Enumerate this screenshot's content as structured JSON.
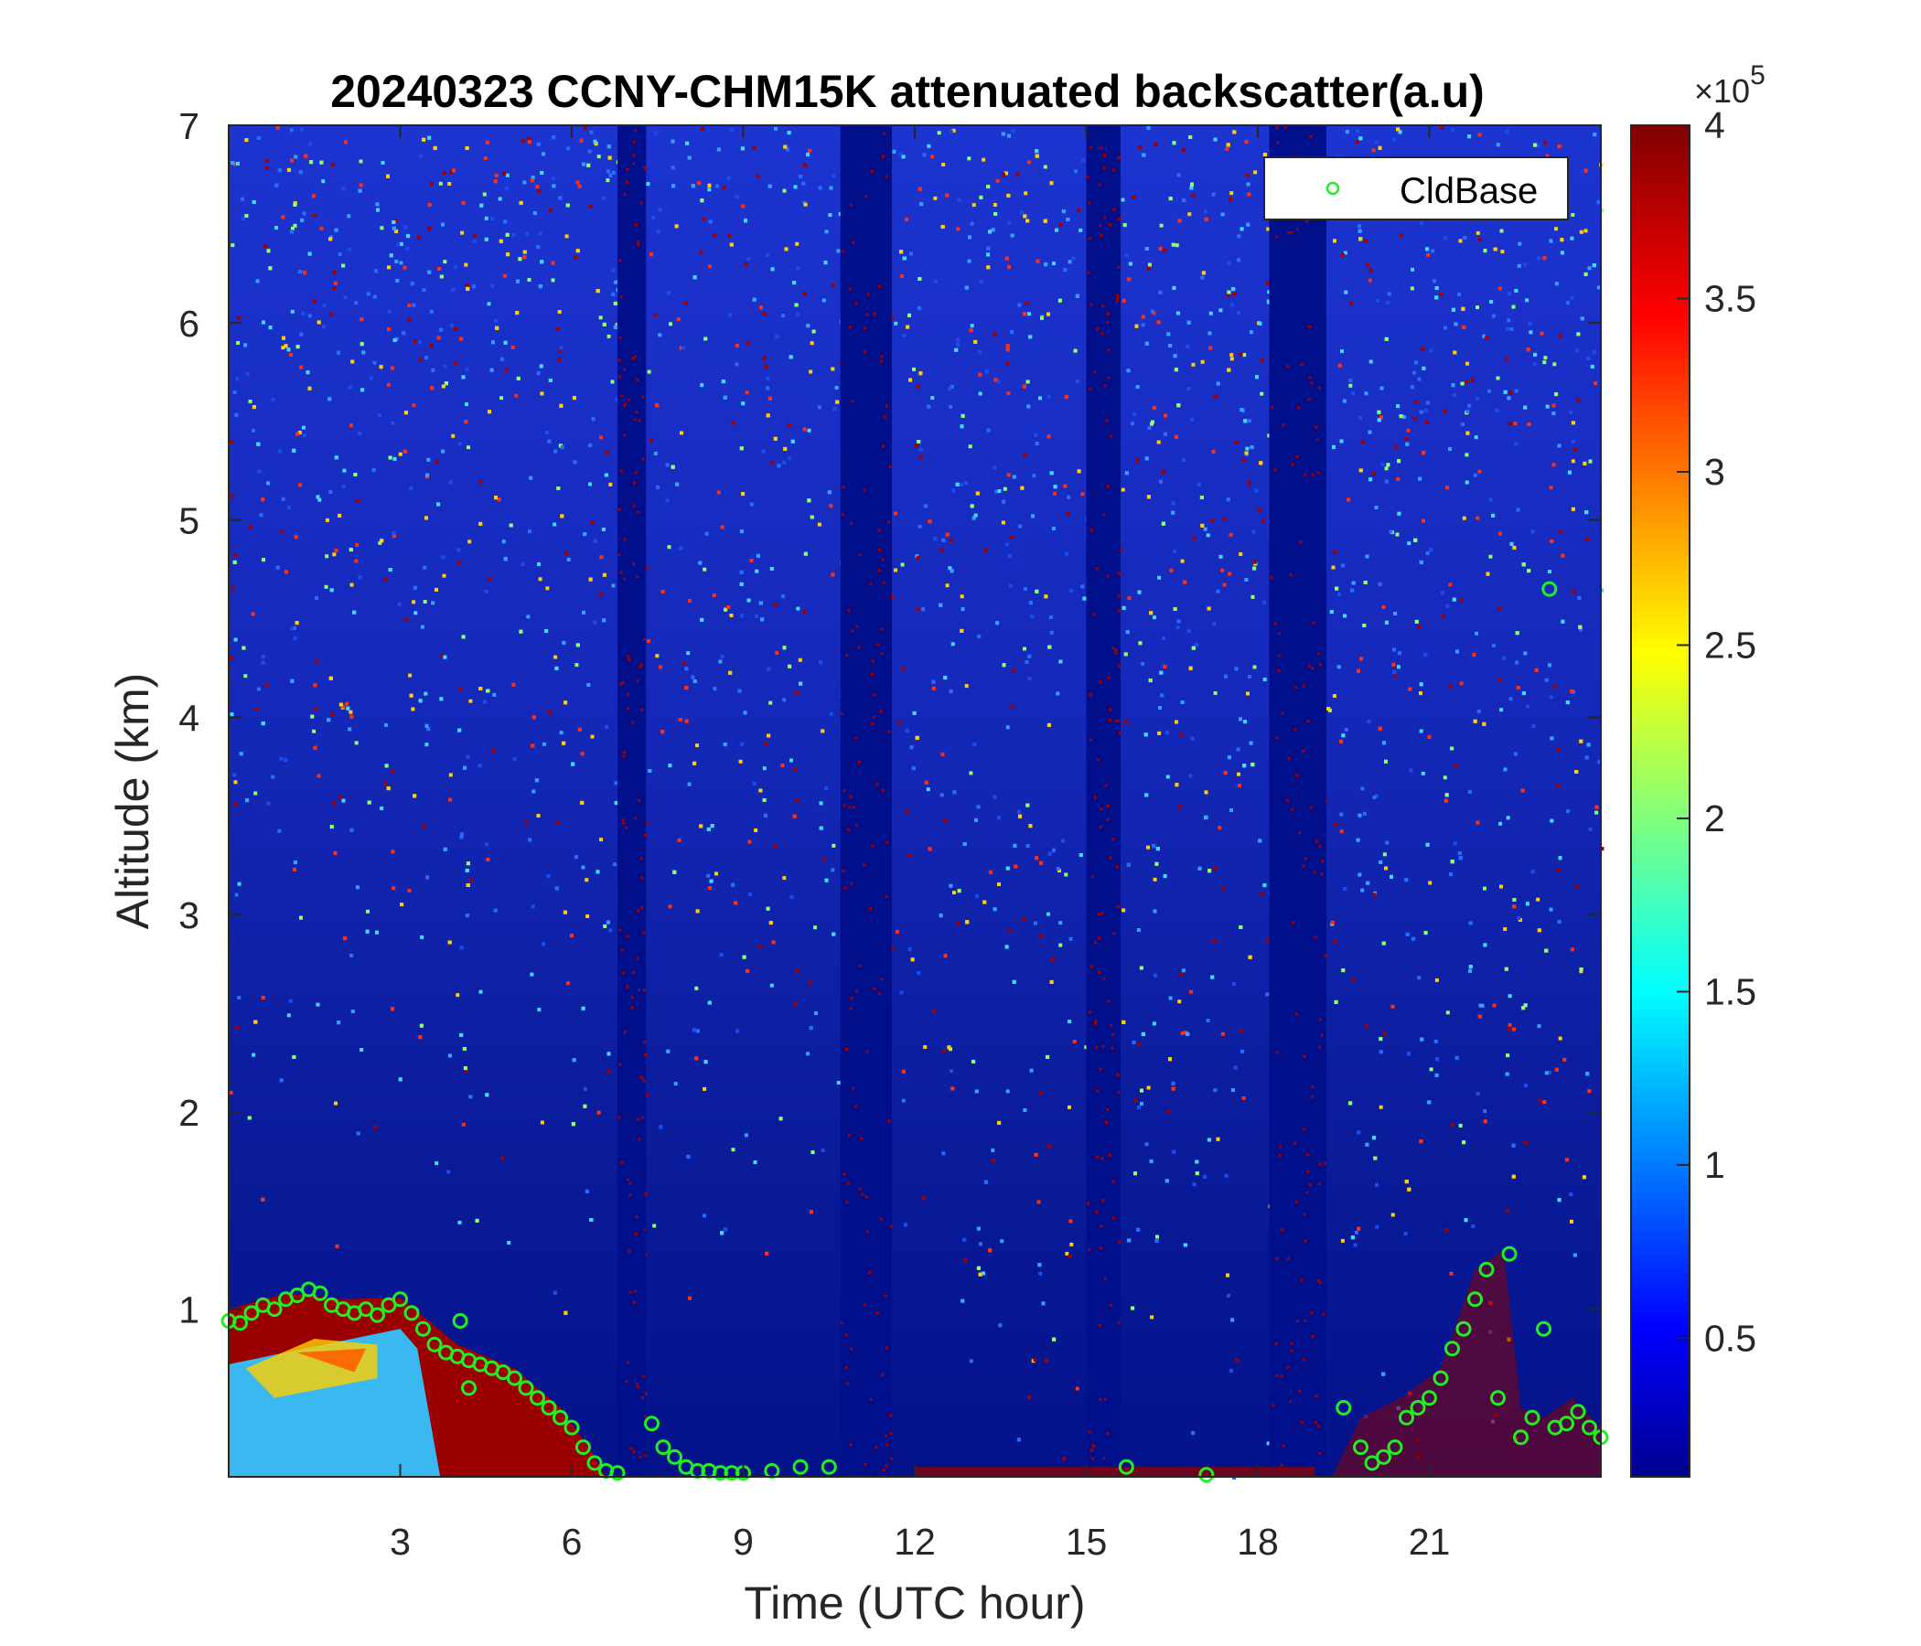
{
  "chart_data": {
    "type": "heatmap",
    "title": "20240323 CCNY-CHM15K attenuated backscatter(a.u)",
    "xlabel": "Time (UTC hour)",
    "ylabel": "Altitude (km)",
    "xlim": [
      0,
      24
    ],
    "ylim": [
      0.15,
      7
    ],
    "x_ticks": [
      3,
      6,
      9,
      12,
      15,
      18,
      21
    ],
    "y_ticks": [
      1,
      2,
      3,
      4,
      5,
      6,
      7
    ],
    "colormap": "jet",
    "grid": false,
    "colorbar": {
      "range": [
        0.1,
        4
      ],
      "ticks": [
        0.5,
        1,
        1.5,
        2,
        2.5,
        3,
        3.5,
        4
      ],
      "exponent_label": "×10",
      "exponent_power": "5"
    },
    "data_gaps": [
      [
        6.8,
        7.3
      ],
      [
        10.7,
        11.6
      ],
      [
        15.0,
        15.6
      ],
      [
        18.2,
        19.2
      ]
    ],
    "legend": {
      "placement": "top-right",
      "entries": [
        {
          "name": "CldBase",
          "marker": "circle",
          "color": "#22ee22"
        }
      ]
    },
    "series": [
      {
        "name": "CldBase",
        "marker_color": "#22ee22",
        "x": [
          0.0,
          0.2,
          0.4,
          0.6,
          0.8,
          1.0,
          1.2,
          1.4,
          1.6,
          1.8,
          2.0,
          2.2,
          2.4,
          2.6,
          2.8,
          3.0,
          3.2,
          3.4,
          3.6,
          3.8,
          4.0,
          4.2,
          4.4,
          4.6,
          4.8,
          5.0,
          5.2,
          5.4,
          5.6,
          5.8,
          6.0,
          6.2,
          6.4,
          6.6,
          6.8,
          4.05,
          4.2,
          7.4,
          7.6,
          7.8,
          8.0,
          8.2,
          8.4,
          8.6,
          8.8,
          9.0,
          9.5,
          10.0,
          10.5,
          15.7,
          17.1,
          19.5,
          19.8,
          20.0,
          20.2,
          20.4,
          20.6,
          20.8,
          21.0,
          21.2,
          21.4,
          21.6,
          21.8,
          22.0,
          22.2,
          22.4,
          22.6,
          22.8,
          23.0,
          23.1,
          23.2,
          23.4,
          23.6,
          23.8,
          24.0
        ],
        "y": [
          0.94,
          0.93,
          0.98,
          1.02,
          1.0,
          1.05,
          1.07,
          1.1,
          1.08,
          1.02,
          1.0,
          0.98,
          1.0,
          0.97,
          1.02,
          1.05,
          0.98,
          0.9,
          0.82,
          0.78,
          0.76,
          0.74,
          0.72,
          0.7,
          0.68,
          0.65,
          0.6,
          0.55,
          0.5,
          0.45,
          0.4,
          0.3,
          0.22,
          0.18,
          0.17,
          0.94,
          0.6,
          0.42,
          0.3,
          0.25,
          0.2,
          0.18,
          0.18,
          0.17,
          0.17,
          0.17,
          0.18,
          0.2,
          0.2,
          0.2,
          0.16,
          0.5,
          0.3,
          0.22,
          0.25,
          0.3,
          0.45,
          0.5,
          0.55,
          0.65,
          0.8,
          0.9,
          1.05,
          1.2,
          0.55,
          1.28,
          0.35,
          0.45,
          0.9,
          4.65,
          0.4,
          0.42,
          0.48,
          0.4,
          0.35
        ]
      }
    ]
  }
}
